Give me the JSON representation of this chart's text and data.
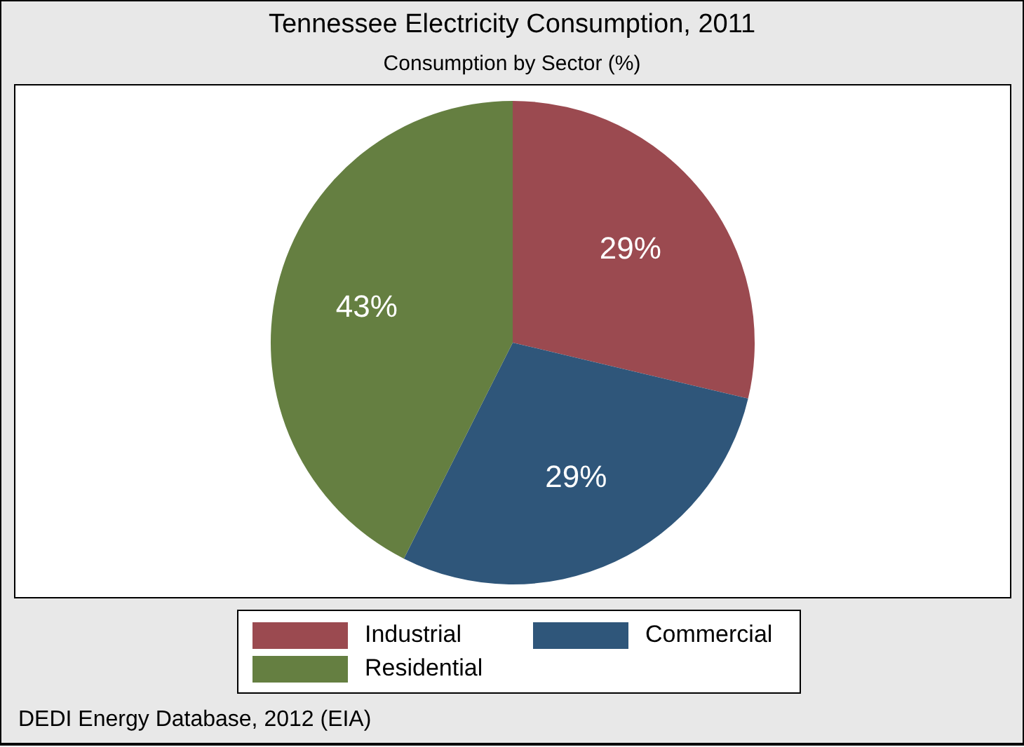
{
  "chart_data": {
    "type": "pie",
    "title": "Tennessee Electricity Consumption, 2011",
    "subtitle": "Consumption by Sector (%)",
    "categories": [
      "Industrial",
      "Commercial",
      "Residential"
    ],
    "values": [
      29,
      29,
      43
    ],
    "colors": [
      "#9b4a50",
      "#2f567a",
      "#657f41"
    ],
    "value_labels": [
      "29%",
      "29%",
      "43%"
    ],
    "legend": "bottom",
    "annotations": [
      "DEDI Energy Database, 2012  (EIA)"
    ]
  }
}
